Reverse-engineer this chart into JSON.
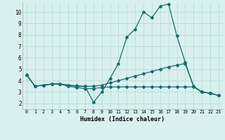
{
  "title": "",
  "xlabel": "Humidex (Indice chaleur)",
  "bg_color": "#d8f0ee",
  "grid_color": "#b8dcd8",
  "line_color": "#1a6b6b",
  "x": [
    0,
    1,
    2,
    3,
    4,
    5,
    6,
    7,
    8,
    9,
    10,
    11,
    12,
    13,
    14,
    15,
    16,
    17,
    18,
    19,
    20,
    21,
    22,
    23
  ],
  "series1": [
    4.5,
    3.5,
    3.6,
    3.7,
    3.7,
    3.6,
    3.5,
    3.5,
    2.1,
    3.0,
    4.2,
    5.5,
    7.8,
    8.5,
    10.0,
    9.5,
    10.5,
    10.7,
    7.9,
    5.6,
    3.5,
    3.0,
    2.9,
    2.7
  ],
  "series2": [
    4.5,
    3.5,
    3.6,
    3.7,
    3.7,
    3.6,
    3.55,
    3.5,
    3.5,
    3.6,
    3.8,
    4.0,
    4.2,
    4.4,
    4.6,
    4.8,
    5.0,
    5.2,
    5.35,
    5.5,
    3.5,
    3.0,
    2.9,
    2.7
  ],
  "series3": [
    4.5,
    3.5,
    3.6,
    3.7,
    3.7,
    3.5,
    3.4,
    3.3,
    3.3,
    3.4,
    3.45,
    3.45,
    3.45,
    3.45,
    3.45,
    3.45,
    3.45,
    3.45,
    3.45,
    3.45,
    3.45,
    3.0,
    2.9,
    2.7
  ],
  "ylim": [
    1.5,
    10.8
  ],
  "yticks": [
    2,
    3,
    4,
    5,
    6,
    7,
    8,
    9,
    10
  ],
  "xlim": [
    -0.5,
    23.5
  ],
  "xtick_labels": [
    "0",
    "1",
    "2",
    "3",
    "4",
    "5",
    "6",
    "7",
    "8",
    "9",
    "10",
    "11",
    "12",
    "13",
    "14",
    "15",
    "16",
    "17",
    "18",
    "19",
    "20",
    "21",
    "22",
    "23"
  ]
}
